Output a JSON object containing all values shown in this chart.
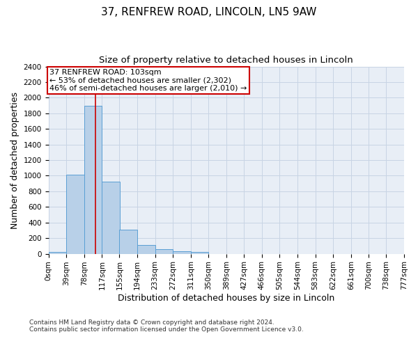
{
  "title": "37, RENFREW ROAD, LINCOLN, LN5 9AW",
  "subtitle": "Size of property relative to detached houses in Lincoln",
  "xlabel": "Distribution of detached houses by size in Lincoln",
  "ylabel": "Number of detached properties",
  "bin_edges": [
    0,
    39,
    78,
    117,
    155,
    194,
    233,
    272,
    311,
    350,
    389,
    427,
    466,
    505,
    544,
    583,
    622,
    661,
    700,
    738,
    777
  ],
  "bar_heights": [
    20,
    1010,
    1900,
    920,
    310,
    110,
    55,
    35,
    20,
    0,
    0,
    0,
    0,
    0,
    0,
    0,
    0,
    0,
    0,
    0
  ],
  "bar_color": "#b8d0e8",
  "bar_edge_color": "#5a9fd4",
  "grid_color": "#c8d4e4",
  "background_color": "#e8eef6",
  "vline_x": 103,
  "vline_color": "#cc0000",
  "annotation_line1": "37 RENFREW ROAD: 103sqm",
  "annotation_line2": "← 53% of detached houses are smaller (2,302)",
  "annotation_line3": "46% of semi-detached houses are larger (2,010) →",
  "annotation_box_color": "#cc0000",
  "ylim": [
    0,
    2400
  ],
  "yticks": [
    0,
    200,
    400,
    600,
    800,
    1000,
    1200,
    1400,
    1600,
    1800,
    2000,
    2200,
    2400
  ],
  "tick_labels": [
    "0sqm",
    "39sqm",
    "78sqm",
    "117sqm",
    "155sqm",
    "194sqm",
    "233sqm",
    "272sqm",
    "311sqm",
    "350sqm",
    "389sqm",
    "427sqm",
    "466sqm",
    "505sqm",
    "544sqm",
    "583sqm",
    "622sqm",
    "661sqm",
    "700sqm",
    "738sqm",
    "777sqm"
  ],
  "footnote1": "Contains HM Land Registry data © Crown copyright and database right 2024.",
  "footnote2": "Contains public sector information licensed under the Open Government Licence v3.0.",
  "title_fontsize": 11,
  "subtitle_fontsize": 9.5,
  "label_fontsize": 9,
  "tick_fontsize": 7.5,
  "annot_fontsize": 8,
  "footnote_fontsize": 6.5
}
